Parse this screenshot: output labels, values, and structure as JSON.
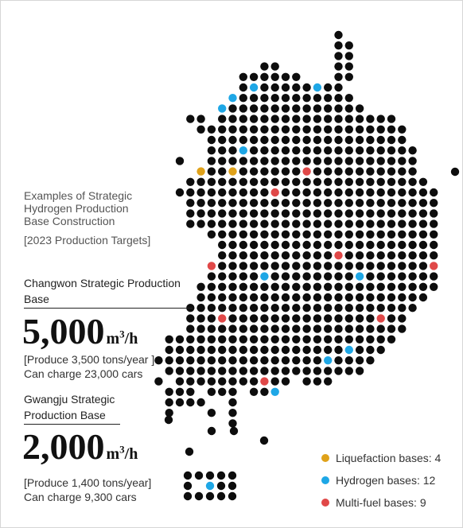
{
  "intro": {
    "title_lines": [
      "Examples of Strategic",
      "Hydrogen Production",
      "Base Construction"
    ],
    "targets_label": "[2023 Production Targets]"
  },
  "changwon": {
    "title_line1": "Changwon Strategic Production",
    "title_line2": "Base",
    "value": "5,000",
    "unit": "m",
    "unit_power": "3",
    "unit_rate": "/h",
    "note_line1": "[Produce 3,500 tons/year ]",
    "note_line2": "Can charge 23,000 cars"
  },
  "gwangju": {
    "title_line1": "Gwangju Strategic",
    "title_line2": "Production Base",
    "value": "2,000",
    "unit": "m",
    "unit_power": "3",
    "unit_rate": "/h",
    "note_line1": "[Produce 1,400 tons/year]",
    "note_line2": "Can charge 9,300 cars"
  },
  "legend": [
    {
      "label": "Liquefaction bases: 4",
      "color": "#e0a21a",
      "type": "liquefaction"
    },
    {
      "label": "Hydrogen bases: 12",
      "color": "#1ea7e6",
      "type": "hydrogen"
    },
    {
      "label": "Multi-fuel bases: 9",
      "color": "#e04848",
      "type": "multifuel"
    }
  ],
  "colors": {
    "land_dot": "#0d0d0d",
    "liquefaction": "#e0a21a",
    "hydrogen": "#1ea7e6",
    "multifuel": "#e04848",
    "other": "#27b5a0"
  }
}
